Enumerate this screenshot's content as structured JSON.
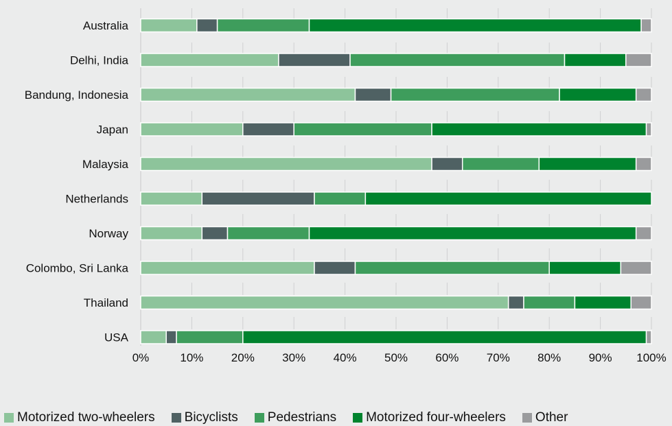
{
  "chart_data": {
    "type": "bar",
    "orientation": "horizontal",
    "stacked": true,
    "title": "",
    "xlabel": "",
    "ylabel": "",
    "xlim": [
      0,
      100
    ],
    "x_ticks": [
      "0%",
      "10%",
      "20%",
      "30%",
      "40%",
      "50%",
      "60%",
      "70%",
      "80%",
      "90%",
      "100%"
    ],
    "grid": "vertical dashed",
    "legend_position": "bottom",
    "categories": [
      "Australia",
      "Delhi, India",
      "Bandung, Indonesia",
      "Japan",
      "Malaysia",
      "Netherlands",
      "Norway",
      "Colombo, Sri Lanka",
      "Thailand",
      "USA"
    ],
    "series": [
      {
        "name": "Motorized two-wheelers",
        "color": "#8dc49b",
        "values": [
          11,
          27,
          42,
          20,
          57,
          12,
          12,
          34,
          72,
          5
        ]
      },
      {
        "name": "Bicyclists",
        "color": "#4f6163",
        "values": [
          4,
          14,
          7,
          10,
          6,
          22,
          5,
          8,
          3,
          2
        ]
      },
      {
        "name": "Pedestrians",
        "color": "#3e9d5c",
        "values": [
          18,
          42,
          33,
          27,
          15,
          10,
          16,
          38,
          10,
          13
        ]
      },
      {
        "name": "Motorized four-wheelers",
        "color": "#00832e",
        "values": [
          65,
          12,
          15,
          42,
          19,
          56,
          64,
          14,
          11,
          79
        ]
      },
      {
        "name": "Other",
        "color": "#9a9b9d",
        "values": [
          2,
          5,
          3,
          1,
          3,
          0,
          3,
          6,
          4,
          1
        ]
      }
    ]
  }
}
